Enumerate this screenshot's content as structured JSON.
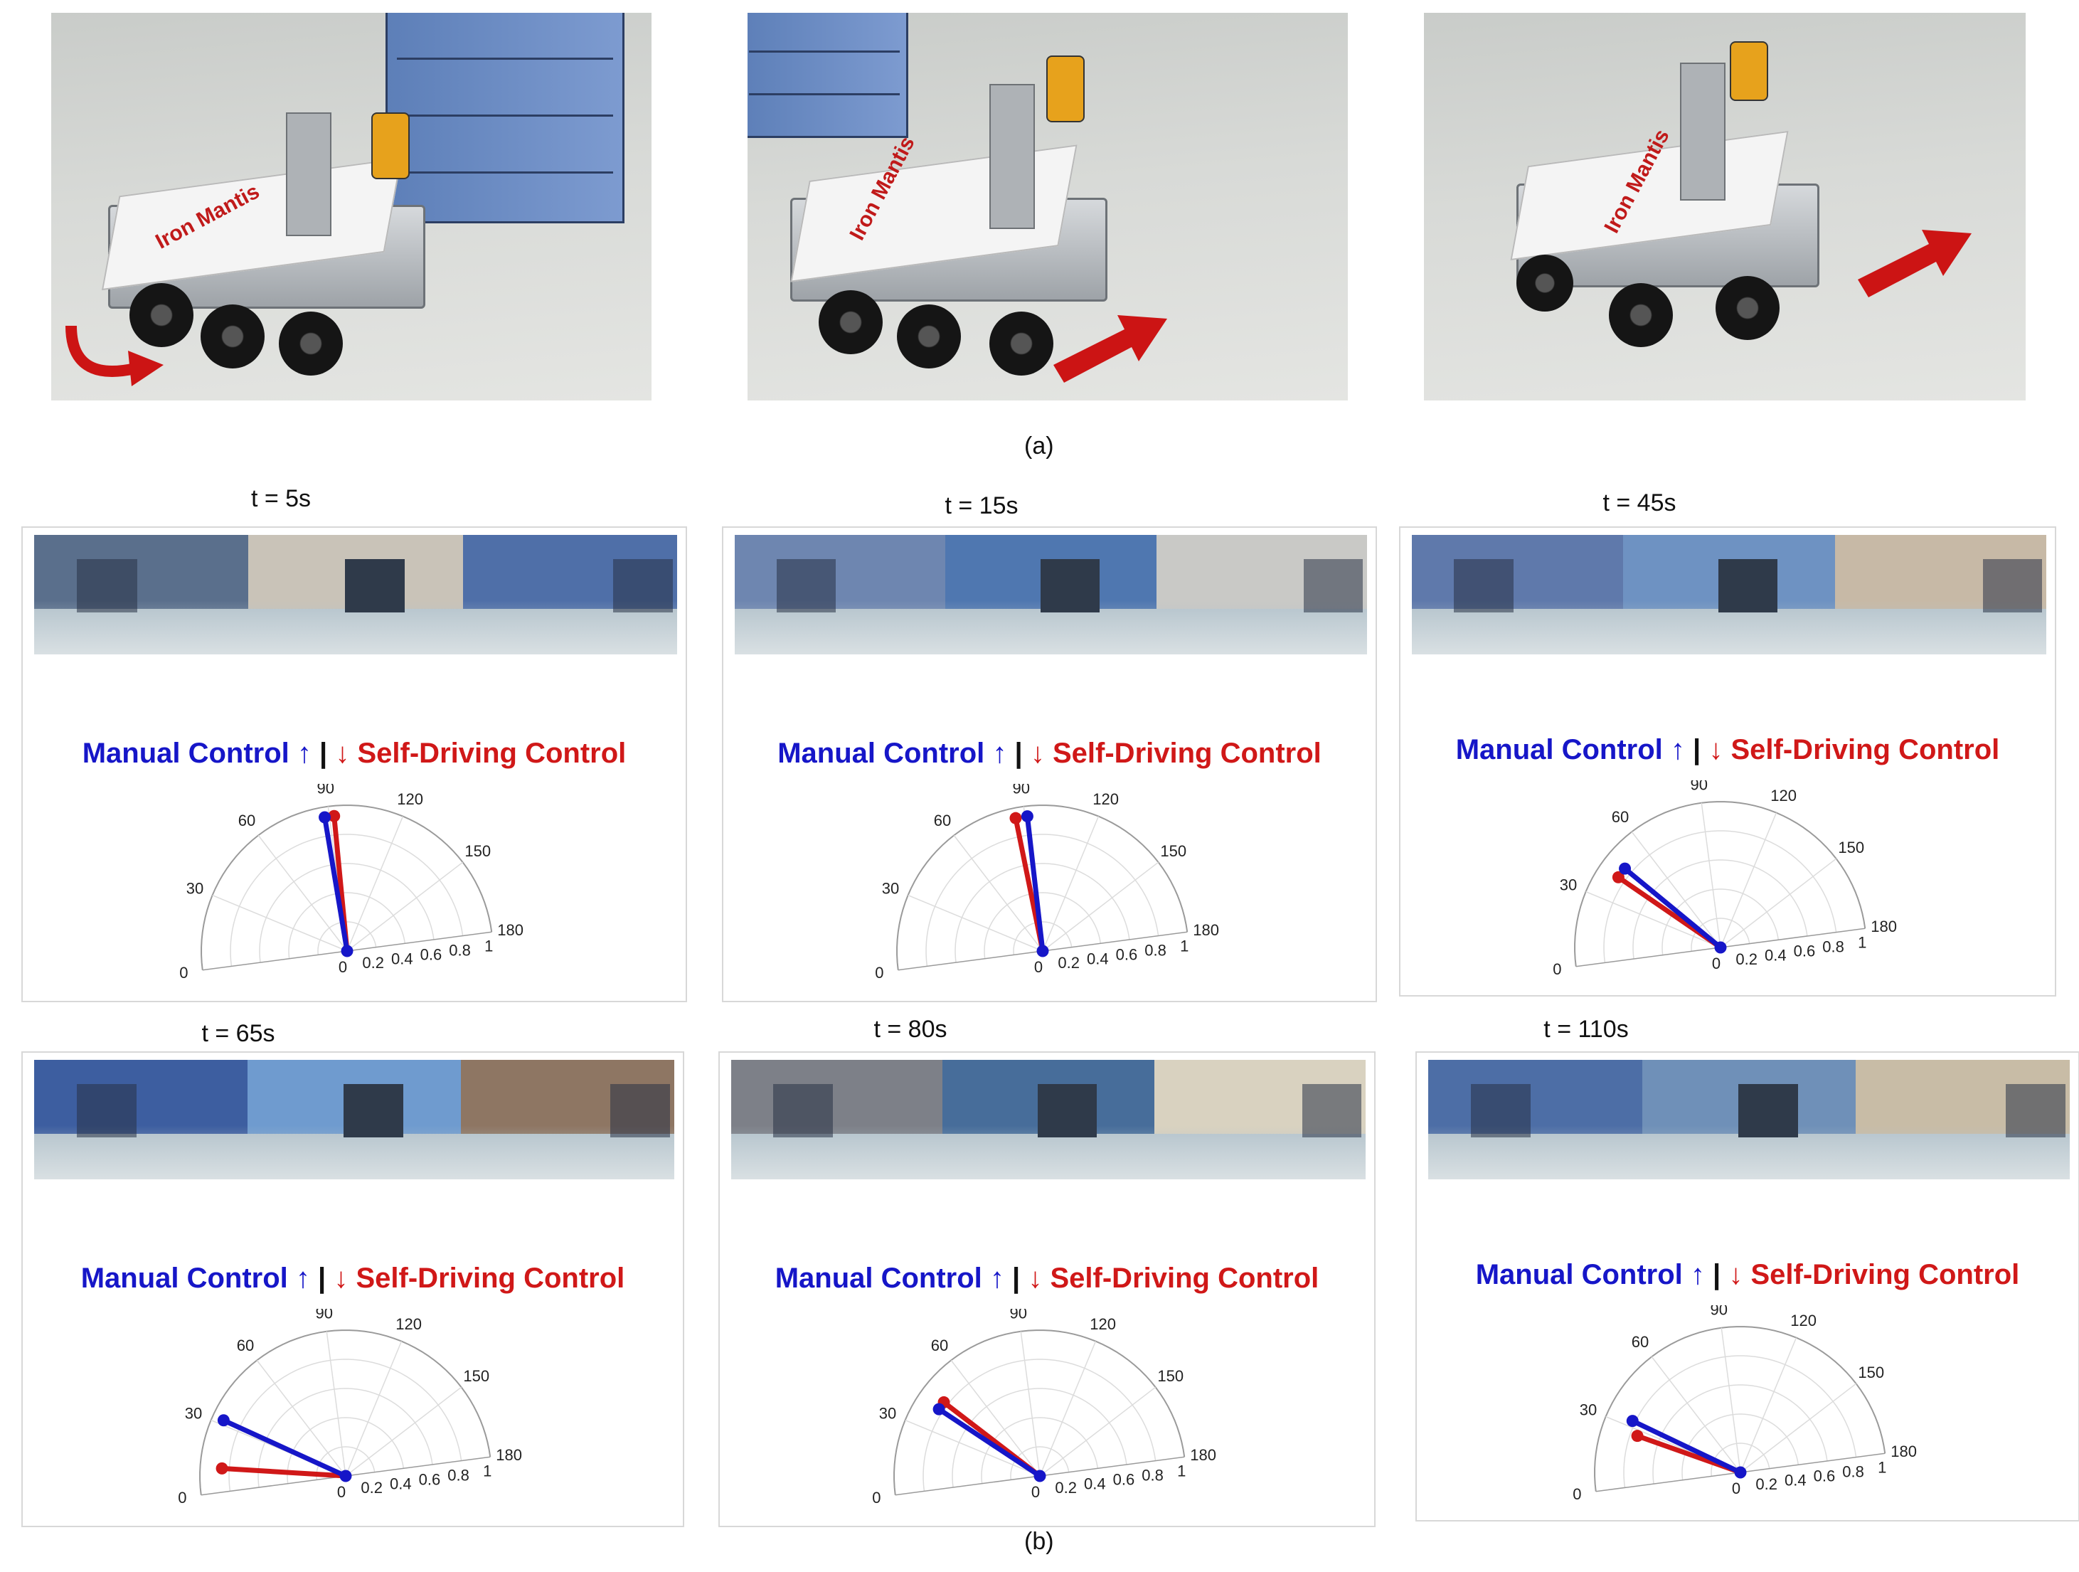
{
  "top_photos": {
    "caption": "(a)",
    "robot_label": "Iron Mantis",
    "colors": {
      "arrow": "#cc1414"
    },
    "photos": [
      {
        "arrow_icon": "curved-arrow-icon"
      },
      {
        "arrow_icon": "straight-arrow-icon"
      },
      {
        "arrow_icon": "straight-arrow-icon"
      }
    ]
  },
  "bottom": {
    "caption": "(b)",
    "legend": {
      "manual_label": "Manual Control",
      "manual_arrow": "↑",
      "separator": "|",
      "self_arrow": "↓",
      "self_label": "Self-Driving Control"
    },
    "colors": {
      "manual": "#1616c8",
      "self": "#d01818"
    }
  },
  "chart_data": [
    {
      "type": "polar",
      "title": "t = 5s",
      "angle_ticks": [
        "0",
        "30",
        "60",
        "90",
        "120",
        "150",
        "180"
      ],
      "radius_ticks": [
        "0",
        "0.2",
        "0.4",
        "0.6",
        "0.8",
        "1"
      ],
      "rlim": [
        0,
        1
      ],
      "thetalim": [
        0,
        180
      ],
      "grid": true,
      "series": [
        {
          "name": "Manual Control",
          "angle": 88,
          "radius": 0.93
        },
        {
          "name": "Self-Driving Control",
          "angle": 92,
          "radius": 0.93
        }
      ]
    },
    {
      "type": "polar",
      "title": "t = 15s",
      "angle_ticks": [
        "0",
        "30",
        "60",
        "90",
        "120",
        "150",
        "180"
      ],
      "radius_ticks": [
        "0",
        "0.2",
        "0.4",
        "0.6",
        "0.8",
        "1"
      ],
      "rlim": [
        0,
        1
      ],
      "thetalim": [
        0,
        180
      ],
      "grid": true,
      "series": [
        {
          "name": "Manual Control",
          "angle": 91,
          "radius": 0.93
        },
        {
          "name": "Self-Driving Control",
          "angle": 86,
          "radius": 0.93
        }
      ]
    },
    {
      "type": "polar",
      "title": "t = 45s",
      "angle_ticks": [
        "0",
        "30",
        "60",
        "90",
        "120",
        "150",
        "180"
      ],
      "radius_ticks": [
        "0",
        "0.2",
        "0.4",
        "0.6",
        "0.8",
        "1"
      ],
      "rlim": [
        0,
        1
      ],
      "thetalim": [
        0,
        180
      ],
      "grid": true,
      "series": [
        {
          "name": "Manual Control",
          "angle": 47,
          "radius": 0.85
        },
        {
          "name": "Self-Driving Control",
          "angle": 42,
          "radius": 0.85
        }
      ]
    },
    {
      "type": "polar",
      "title": "t = 65s",
      "angle_ticks": [
        "0",
        "30",
        "60",
        "90",
        "120",
        "150",
        "180"
      ],
      "radius_ticks": [
        "0",
        "0.2",
        "0.4",
        "0.6",
        "0.8",
        "1"
      ],
      "rlim": [
        0,
        1
      ],
      "thetalim": [
        0,
        180
      ],
      "grid": true,
      "series": [
        {
          "name": "Manual Control",
          "angle": 32,
          "radius": 0.92
        },
        {
          "name": "Self-Driving Control",
          "angle": 11,
          "radius": 0.85
        }
      ]
    },
    {
      "type": "polar",
      "title": "t = 80s",
      "angle_ticks": [
        "0",
        "30",
        "60",
        "90",
        "120",
        "150",
        "180"
      ],
      "radius_ticks": [
        "0",
        "0.2",
        "0.4",
        "0.6",
        "0.8",
        "1"
      ],
      "rlim": [
        0,
        1
      ],
      "thetalim": [
        0,
        180
      ],
      "grid": true,
      "series": [
        {
          "name": "Manual Control",
          "angle": 41,
          "radius": 0.83
        },
        {
          "name": "Self-Driving Control",
          "angle": 45,
          "radius": 0.83
        }
      ]
    },
    {
      "type": "polar",
      "title": "t = 110s",
      "angle_ticks": [
        "0",
        "30",
        "60",
        "90",
        "120",
        "150",
        "180"
      ],
      "radius_ticks": [
        "0",
        "0.2",
        "0.4",
        "0.6",
        "0.8",
        "1"
      ],
      "rlim": [
        0,
        1
      ],
      "thetalim": [
        0,
        180
      ],
      "grid": true,
      "series": [
        {
          "name": "Manual Control",
          "angle": 33,
          "radius": 0.82
        },
        {
          "name": "Self-Driving Control",
          "angle": 27,
          "radius": 0.75
        }
      ]
    }
  ]
}
